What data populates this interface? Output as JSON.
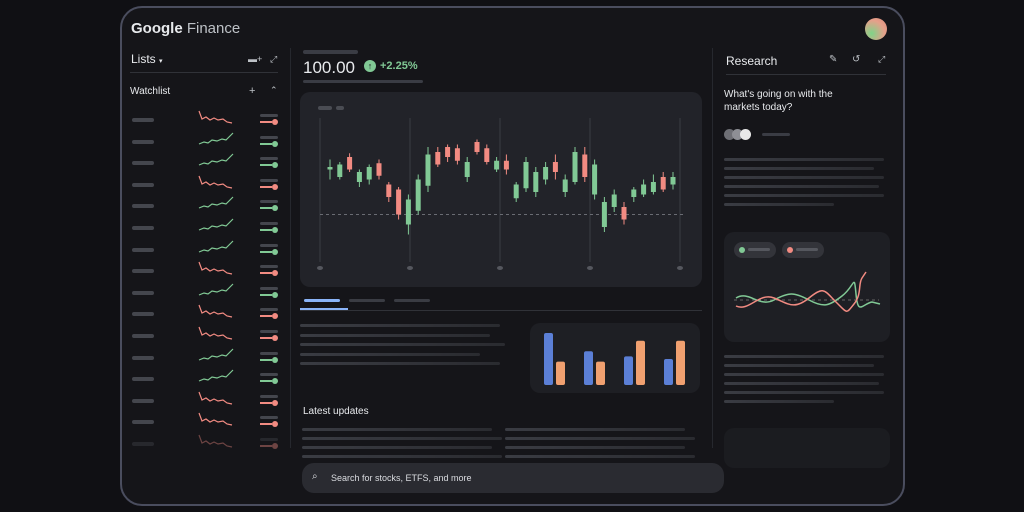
{
  "header": {
    "logo_word1": "Google",
    "logo_word2": "Finance"
  },
  "lists": {
    "title": "Lists",
    "watchlist_title": "Watchlist",
    "items": [
      {
        "trend": "down"
      },
      {
        "trend": "up"
      },
      {
        "trend": "up"
      },
      {
        "trend": "down"
      },
      {
        "trend": "up"
      },
      {
        "trend": "up"
      },
      {
        "trend": "up"
      },
      {
        "trend": "down"
      },
      {
        "trend": "up"
      },
      {
        "trend": "down"
      },
      {
        "trend": "down"
      },
      {
        "trend": "up"
      },
      {
        "trend": "up"
      },
      {
        "trend": "down"
      },
      {
        "trend": "down"
      },
      {
        "trend": "down"
      }
    ]
  },
  "quote": {
    "price": "100.00",
    "change": "+2.25%"
  },
  "colors": {
    "up": "#81c995",
    "down": "#f28b82",
    "blue": "#5b7fd6",
    "orange": "#f0a070",
    "accent": "#8ab4f8"
  },
  "chart_data": {
    "type": "candlestick",
    "note": "values in relative price units",
    "candles": [
      [
        78,
        80,
        86,
        70
      ],
      [
        72,
        82,
        84,
        70
      ],
      [
        88,
        78,
        91,
        76
      ],
      [
        68,
        76,
        78,
        64
      ],
      [
        70,
        80,
        82,
        66
      ],
      [
        83,
        73,
        86,
        70
      ],
      [
        66,
        56,
        68,
        52
      ],
      [
        62,
        42,
        64,
        38
      ],
      [
        34,
        54,
        58,
        26
      ],
      [
        45,
        70,
        74,
        42
      ],
      [
        65,
        90,
        96,
        60
      ],
      [
        92,
        82,
        96,
        80
      ],
      [
        96,
        88,
        98,
        84
      ],
      [
        95,
        85,
        98,
        82
      ],
      [
        72,
        84,
        88,
        68
      ],
      [
        100,
        92,
        102,
        90
      ],
      [
        95,
        84,
        98,
        82
      ],
      [
        78,
        85,
        88,
        76
      ],
      [
        85,
        78,
        90,
        74
      ],
      [
        55,
        66,
        68,
        52
      ],
      [
        63,
        84,
        88,
        60
      ],
      [
        60,
        76,
        80,
        56
      ],
      [
        70,
        80,
        84,
        66
      ],
      [
        84,
        76,
        90,
        70
      ],
      [
        60,
        70,
        74,
        56
      ],
      [
        68,
        92,
        96,
        66
      ],
      [
        90,
        72,
        96,
        68
      ],
      [
        58,
        82,
        86,
        54
      ],
      [
        32,
        52,
        56,
        28
      ],
      [
        48,
        58,
        62,
        44
      ],
      [
        48,
        38,
        52,
        34
      ],
      [
        56,
        62,
        64,
        52
      ],
      [
        58,
        66,
        70,
        56
      ],
      [
        60,
        68,
        74,
        58
      ],
      [
        72,
        62,
        76,
        60
      ],
      [
        66,
        72,
        76,
        62
      ]
    ],
    "baseline": 42
  },
  "tabs": [
    {
      "active": true
    },
    {
      "active": false
    },
    {
      "active": false
    }
  ],
  "bar_chart": {
    "type": "bar",
    "groups": [
      {
        "blue": 1.0,
        "orange": 0.45
      },
      {
        "blue": 0.65,
        "orange": 0.45
      },
      {
        "blue": 0.55,
        "orange": 0.85
      },
      {
        "blue": 0.5,
        "orange": 0.85
      }
    ]
  },
  "latest_updates": "Latest updates",
  "research": {
    "title": "Research",
    "question": "What's going on with the markets today?"
  },
  "search": {
    "placeholder": "Search for stocks, ETFS, and more"
  }
}
